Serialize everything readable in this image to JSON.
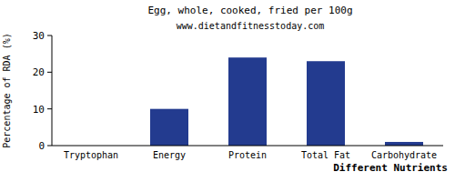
{
  "chart_data": {
    "type": "bar",
    "title": "Egg, whole, cooked, fried per 100g",
    "subtitle": "www.dietandfitnesstoday.com",
    "y_label": "Percentage of RDA (%)",
    "x_label": "Different Nutrients",
    "categories": [
      "Tryptophan",
      "Energy",
      "Protein",
      "Total Fat",
      "Carbohydrate"
    ],
    "values": [
      0,
      10,
      24,
      23,
      1
    ],
    "color": "#233b8f",
    "ylim": [
      0,
      30
    ],
    "yticks": [
      0,
      10,
      20,
      30
    ],
    "grid": false
  }
}
